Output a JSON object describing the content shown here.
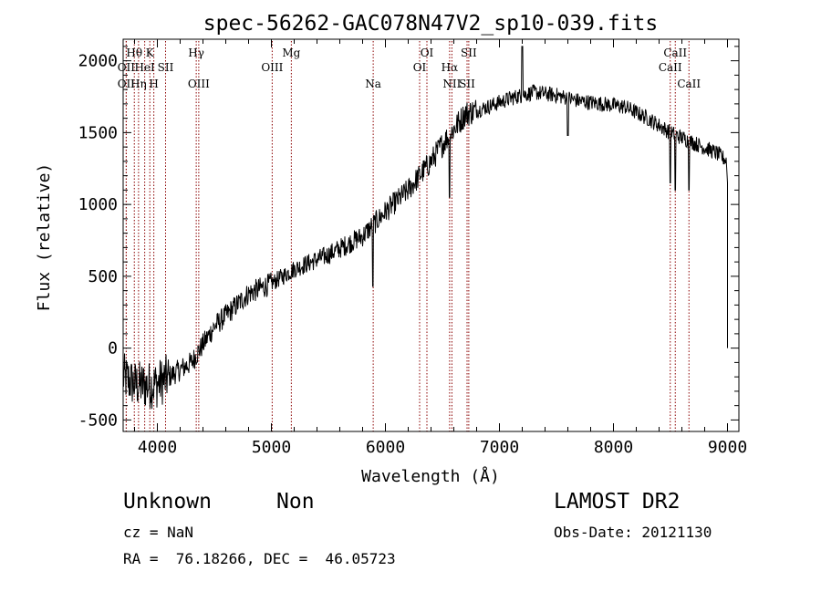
{
  "chart_data": {
    "type": "line",
    "title": "spec-56262-GAC078N47V2_sp10-039.fits",
    "xlabel": "Wavelength (Å)",
    "ylabel": "Flux (relative)",
    "xlim": [
      3700,
      9100
    ],
    "ylim": [
      -580,
      2150
    ],
    "xticks": [
      4000,
      5000,
      6000,
      7000,
      8000,
      9000
    ],
    "yticks": [
      -500,
      0,
      500,
      1000,
      1500,
      2000
    ],
    "grid": false,
    "legend": "none",
    "line_color": "#000000",
    "marker_color": "#8b0000",
    "spectrum_trend": {
      "x": [
        3700,
        3800,
        3900,
        4000,
        4100,
        4300,
        4500,
        4800,
        5000,
        5200,
        5500,
        5800,
        6000,
        6200,
        6400,
        6500,
        6700,
        6900,
        7100,
        7300,
        7500,
        7700,
        7900,
        8100,
        8300,
        8500,
        8700,
        8900,
        9000
      ],
      "y": [
        -200,
        -250,
        -260,
        -250,
        -200,
        -100,
        150,
        380,
        450,
        550,
        650,
        780,
        950,
        1100,
        1300,
        1420,
        1630,
        1680,
        1740,
        1780,
        1760,
        1720,
        1700,
        1680,
        1600,
        1500,
        1430,
        1360,
        1300
      ]
    },
    "spectral_features": [
      {
        "x": 6563,
        "y": 1050
      },
      {
        "x": 5890,
        "y": 430
      },
      {
        "x": 7200,
        "y": 2100
      },
      {
        "x": 8498,
        "y": 1150
      },
      {
        "x": 8542,
        "y": 1100
      },
      {
        "x": 8662,
        "y": 1100
      },
      {
        "x": 7600,
        "y": 1480
      },
      {
        "x": 9000,
        "y": 0
      }
    ],
    "line_markers": [
      {
        "label": "Hθ",
        "x": 3798,
        "row": 1
      },
      {
        "label": "K",
        "x": 3934,
        "row": 1
      },
      {
        "label": "Hγ",
        "x": 4341,
        "row": 1
      },
      {
        "label": "Mg",
        "x": 5175,
        "row": 1
      },
      {
        "label": "OI",
        "x": 6364,
        "row": 1
      },
      {
        "label": "SII",
        "x": 6731,
        "row": 1
      },
      {
        "label": "CaII",
        "x": 8542,
        "row": 1
      },
      {
        "label": "OII",
        "x": 3727,
        "row": 2
      },
      {
        "label": "HeI",
        "x": 3889,
        "row": 2
      },
      {
        "label": "SII",
        "x": 4072,
        "row": 2
      },
      {
        "label": "OIII",
        "x": 5007,
        "row": 2
      },
      {
        "label": "OI",
        "x": 6300,
        "row": 2
      },
      {
        "label": "Hα",
        "x": 6563,
        "row": 2
      },
      {
        "label": "CaII",
        "x": 8498,
        "row": 2
      },
      {
        "label": "OII",
        "x": 3727,
        "row": 3
      },
      {
        "label": "Hη",
        "x": 3835,
        "row": 3
      },
      {
        "label": "H",
        "x": 3969,
        "row": 3
      },
      {
        "label": "OIII",
        "x": 4363,
        "row": 3
      },
      {
        "label": "Na",
        "x": 5893,
        "row": 3
      },
      {
        "label": "NII",
        "x": 6583,
        "row": 3
      },
      {
        "label": "SII",
        "x": 6716,
        "row": 3
      },
      {
        "label": "CaII",
        "x": 8662,
        "row": 3
      }
    ]
  },
  "footer": {
    "object_type": "Unknown",
    "subclass": "Non",
    "survey": "LAMOST DR2",
    "cz": "cz = NaN",
    "obs_date": "Obs-Date: 20121130",
    "radec": "RA =  76.18266, DEC =  46.05723"
  }
}
